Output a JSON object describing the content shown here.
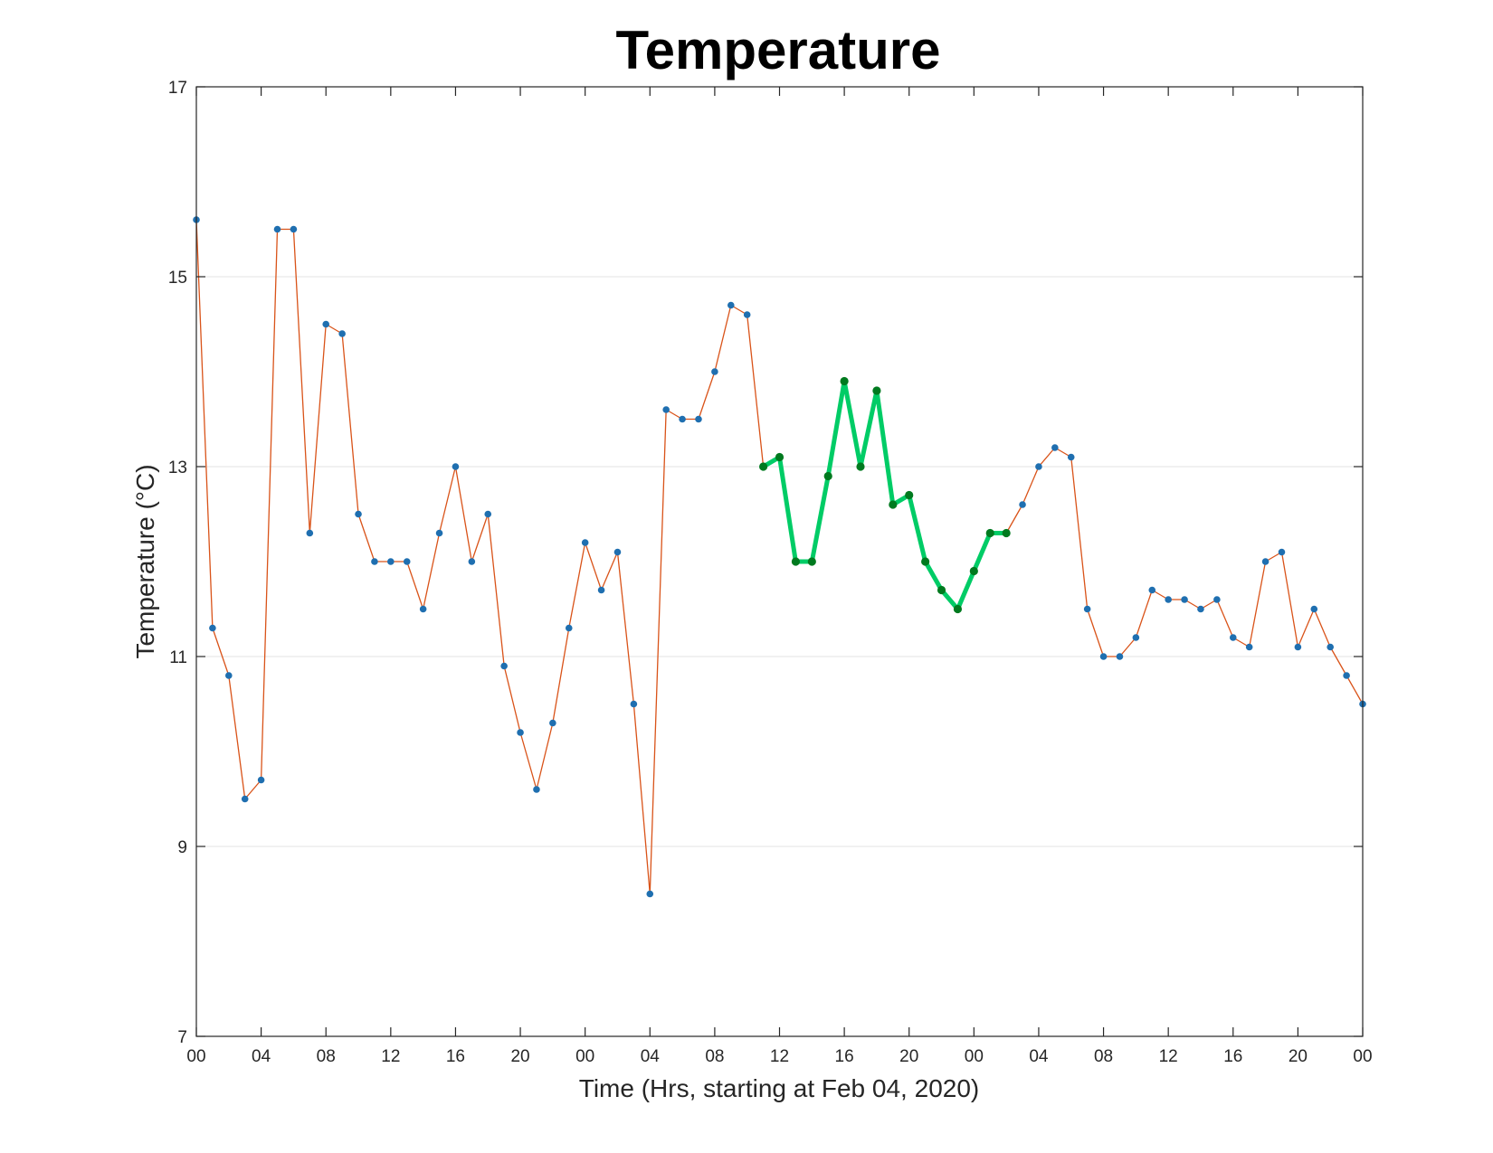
{
  "chart_data": {
    "type": "line",
    "title": "Temperature",
    "xlabel": "Time (Hrs, starting at Feb 04, 2020)",
    "ylabel": "Temperature (°C)",
    "ylim": [
      7,
      17
    ],
    "xlim": [
      "2020-02-04T00:00",
      "2020-02-07T00:00"
    ],
    "y_ticks": [
      7,
      9,
      11,
      13,
      15,
      17
    ],
    "x_tick_labels": [
      "00",
      "04",
      "08",
      "12",
      "16",
      "20",
      "00",
      "04",
      "08",
      "12",
      "16",
      "20",
      "00",
      "04",
      "08",
      "12",
      "16",
      "20",
      "00"
    ],
    "grid": "horizontal",
    "series": [
      {
        "line_color": "#d95319",
        "marker_color": "#1f6fb0",
        "x": [
          "2020-02-04T00:00",
          "2020-02-04T01:00",
          "2020-02-04T02:00",
          "2020-02-04T03:00",
          "2020-02-04T04:00",
          "2020-02-04T05:00",
          "2020-02-04T06:00",
          "2020-02-04T07:00",
          "2020-02-04T08:00",
          "2020-02-04T09:00",
          "2020-02-04T10:00",
          "2020-02-04T11:00",
          "2020-02-04T12:00",
          "2020-02-04T13:00",
          "2020-02-04T14:00",
          "2020-02-04T15:00",
          "2020-02-04T16:00",
          "2020-02-04T17:00",
          "2020-02-04T18:00",
          "2020-02-04T19:00",
          "2020-02-04T20:00",
          "2020-02-04T21:00",
          "2020-02-04T22:00",
          "2020-02-04T23:00",
          "2020-02-05T00:00",
          "2020-02-05T01:00",
          "2020-02-05T02:00",
          "2020-02-05T03:00",
          "2020-02-05T04:00",
          "2020-02-05T05:00",
          "2020-02-05T06:00",
          "2020-02-05T07:00",
          "2020-02-05T08:00",
          "2020-02-05T09:00",
          "2020-02-05T10:00",
          "2020-02-05T11:00",
          "2020-02-05T12:00",
          "2020-02-05T13:00",
          "2020-02-05T14:00",
          "2020-02-05T15:00",
          "2020-02-05T16:00",
          "2020-02-05T17:00",
          "2020-02-05T18:00",
          "2020-02-05T19:00",
          "2020-02-05T20:00",
          "2020-02-05T21:00",
          "2020-02-05T22:00",
          "2020-02-05T23:00",
          "2020-02-06T00:00",
          "2020-02-06T01:00",
          "2020-02-06T02:00",
          "2020-02-06T03:00",
          "2020-02-06T04:00",
          "2020-02-06T05:00",
          "2020-02-06T06:00",
          "2020-02-06T07:00",
          "2020-02-06T08:00",
          "2020-02-06T09:00",
          "2020-02-06T10:00",
          "2020-02-06T11:00",
          "2020-02-06T12:00",
          "2020-02-06T13:00",
          "2020-02-06T14:00",
          "2020-02-06T15:00",
          "2020-02-06T16:00",
          "2020-02-06T17:00",
          "2020-02-06T18:00",
          "2020-02-06T19:00",
          "2020-02-06T20:00",
          "2020-02-06T21:00",
          "2020-02-06T22:00",
          "2020-02-06T23:00",
          "2020-02-07T00:00"
        ],
        "y": [
          15.6,
          11.3,
          10.8,
          9.5,
          9.7,
          15.5,
          15.5,
          12.3,
          14.5,
          14.4,
          12.5,
          12.0,
          12.0,
          12.0,
          11.5,
          12.3,
          13.0,
          12.0,
          12.5,
          10.9,
          10.2,
          9.6,
          10.3,
          11.3,
          12.2,
          11.7,
          12.1,
          10.5,
          8.5,
          13.6,
          13.5,
          13.5,
          14.0,
          14.7,
          14.6,
          13.0,
          13.1,
          12.0,
          12.0,
          12.9,
          13.9,
          13.0,
          13.8,
          12.6,
          12.7,
          12.0,
          11.7,
          11.5,
          11.9,
          12.3,
          12.3,
          12.6,
          13.0,
          13.2,
          13.1,
          11.5,
          11.0,
          11.0,
          11.2,
          11.7,
          11.6,
          11.6,
          11.5,
          11.6,
          11.2,
          11.1,
          12.0,
          12.1,
          11.1,
          11.5,
          11.1,
          10.8,
          10.5
        ]
      },
      {
        "line_color": "#00cc66",
        "marker_color": "#007a1f",
        "x": [
          "2020-02-05T11:00",
          "2020-02-05T12:00",
          "2020-02-05T13:00",
          "2020-02-05T14:00",
          "2020-02-05T15:00",
          "2020-02-05T16:00",
          "2020-02-05T17:00",
          "2020-02-05T18:00",
          "2020-02-05T19:00",
          "2020-02-05T20:00",
          "2020-02-05T21:00",
          "2020-02-05T22:00",
          "2020-02-05T23:00",
          "2020-02-06T00:00",
          "2020-02-06T01:00",
          "2020-02-06T02:00"
        ],
        "y": [
          13.0,
          13.1,
          12.0,
          12.0,
          12.9,
          13.9,
          13.0,
          13.8,
          12.6,
          12.7,
          12.0,
          11.7,
          11.5,
          11.9,
          12.3,
          12.3
        ]
      }
    ]
  }
}
